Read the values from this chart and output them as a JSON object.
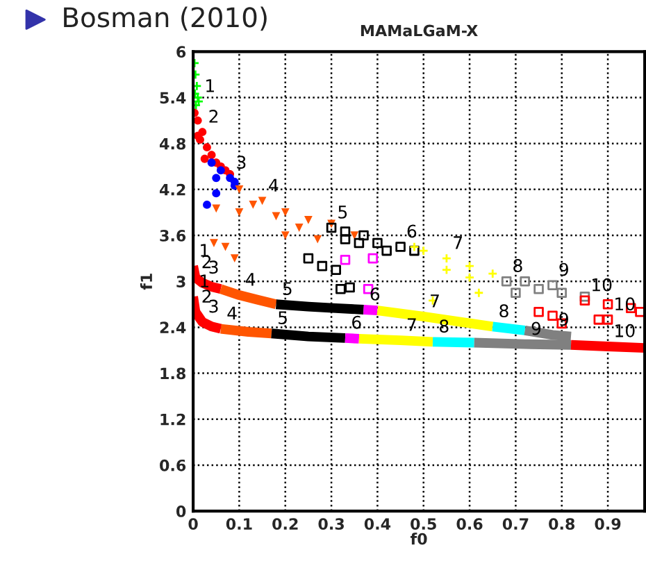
{
  "chart_data": {
    "type": "scatter",
    "title": "Bosman (2010)",
    "subtitle": "MAMaLGaM-X",
    "xlabel": "f0",
    "ylabel": "f1",
    "xlim": [
      0,
      0.98
    ],
    "ylim": [
      0,
      6
    ],
    "xticks": [
      0,
      0.1,
      0.2,
      0.3,
      0.4,
      0.5,
      0.6,
      0.7,
      0.8,
      0.9
    ],
    "yticks": [
      0,
      0.6,
      1.2,
      1.8,
      2.4,
      3,
      3.6,
      4.2,
      4.8,
      5.4,
      6
    ],
    "grid": true,
    "series": [
      {
        "marker": "cross",
        "color": "#00ff00",
        "x": [
          0.003,
          0.005,
          0.008,
          0.004,
          0.01,
          0.006,
          0.012
        ],
        "values": [
          5.85,
          5.7,
          5.55,
          5.45,
          5.4,
          5.3,
          5.35
        ]
      },
      {
        "marker": "circle",
        "color": "#ff0000",
        "x": [
          0.003,
          0.01,
          0.02,
          0.015,
          0.03,
          0.04,
          0.05,
          0.06,
          0.07,
          0.08,
          0.01,
          0.025
        ],
        "values": [
          5.2,
          5.1,
          4.95,
          4.85,
          4.75,
          4.65,
          4.55,
          4.5,
          4.45,
          4.4,
          4.9,
          4.6
        ]
      },
      {
        "marker": "circle",
        "color": "#0000ff",
        "x": [
          0.04,
          0.06,
          0.08,
          0.09,
          0.05,
          0.05,
          0.03,
          0.09
        ],
        "values": [
          4.55,
          4.45,
          4.35,
          4.3,
          4.35,
          4.15,
          4.0,
          4.25
        ]
      },
      {
        "marker": "triangle",
        "color": "#ff5500",
        "x": [
          0.1,
          0.15,
          0.2,
          0.25,
          0.3,
          0.1,
          0.05,
          0.045,
          0.07,
          0.09,
          0.2,
          0.27,
          0.35,
          0.13,
          0.18,
          0.23
        ],
        "values": [
          4.2,
          4.05,
          3.9,
          3.8,
          3.75,
          3.9,
          3.95,
          3.5,
          3.45,
          3.3,
          3.6,
          3.55,
          3.6,
          4.0,
          3.85,
          3.7
        ]
      },
      {
        "marker": "square",
        "color": "#000000",
        "x": [
          0.3,
          0.33,
          0.37,
          0.4,
          0.45,
          0.48,
          0.33,
          0.25,
          0.28,
          0.32,
          0.34,
          0.31,
          0.42,
          0.36
        ],
        "values": [
          3.7,
          3.65,
          3.6,
          3.5,
          3.45,
          3.4,
          3.55,
          3.3,
          3.2,
          2.9,
          2.92,
          3.15,
          3.4,
          3.5
        ]
      },
      {
        "marker": "square",
        "color": "#ff00ff",
        "x": [
          0.33,
          0.39,
          0.38
        ],
        "values": [
          3.28,
          3.3,
          2.9
        ]
      },
      {
        "marker": "cross",
        "color": "#ffff00",
        "x": [
          0.5,
          0.55,
          0.6,
          0.65,
          0.55,
          0.6,
          0.52,
          0.62,
          0.48
        ],
        "values": [
          3.4,
          3.3,
          3.2,
          3.1,
          3.15,
          3.05,
          2.75,
          2.85,
          3.45
        ]
      },
      {
        "marker": "square",
        "color": "#808080",
        "x": [
          0.68,
          0.72,
          0.78,
          0.8,
          0.85,
          0.7,
          0.75
        ],
        "values": [
          3.0,
          3.0,
          2.95,
          2.85,
          2.8,
          2.85,
          2.9
        ]
      },
      {
        "marker": "square",
        "color": "#ff0000",
        "x": [
          0.85,
          0.9,
          0.95,
          0.97,
          0.9,
          0.88,
          0.75,
          0.78,
          0.8
        ],
        "values": [
          2.75,
          2.7,
          2.65,
          2.6,
          2.5,
          2.5,
          2.6,
          2.55,
          2.45
        ]
      },
      {
        "type": "line",
        "color": "#ff0000",
        "x": [
          0,
          0.005,
          0.02,
          0.04,
          0.06
        ],
        "values": [
          3.2,
          3.05,
          2.98,
          2.93,
          2.9
        ]
      },
      {
        "type": "line",
        "color": "#ff5500",
        "x": [
          0.06,
          0.1,
          0.14,
          0.18
        ],
        "values": [
          2.9,
          2.82,
          2.76,
          2.7
        ]
      },
      {
        "type": "line",
        "color": "#000000",
        "x": [
          0.18,
          0.25,
          0.31,
          0.37
        ],
        "values": [
          2.7,
          2.67,
          2.65,
          2.63
        ]
      },
      {
        "type": "line",
        "color": "#ff00ff",
        "x": [
          0.37,
          0.4
        ],
        "values": [
          2.63,
          2.62
        ]
      },
      {
        "type": "line",
        "color": "#ffff00",
        "x": [
          0.4,
          0.5,
          0.58,
          0.65
        ],
        "values": [
          2.62,
          2.54,
          2.47,
          2.41
        ]
      },
      {
        "type": "line",
        "color": "#00ffff",
        "x": [
          0.65,
          0.72
        ],
        "values": [
          2.41,
          2.36
        ]
      },
      {
        "type": "line",
        "color": "#808080",
        "x": [
          0.72,
          0.78,
          0.82
        ],
        "values": [
          2.36,
          2.3,
          2.28
        ]
      },
      {
        "type": "line",
        "color": "#ff0000",
        "x": [
          0,
          0.005,
          0.02,
          0.04,
          0.06
        ],
        "values": [
          2.8,
          2.6,
          2.47,
          2.41,
          2.38
        ]
      },
      {
        "type": "line",
        "color": "#ff5500",
        "x": [
          0.06,
          0.12,
          0.17
        ],
        "values": [
          2.38,
          2.34,
          2.32
        ]
      },
      {
        "type": "line",
        "color": "#000000",
        "x": [
          0.17,
          0.25,
          0.33
        ],
        "values": [
          2.32,
          2.28,
          2.26
        ]
      },
      {
        "type": "line",
        "color": "#ff00ff",
        "x": [
          0.33,
          0.36
        ],
        "values": [
          2.26,
          2.25
        ]
      },
      {
        "type": "line",
        "color": "#ffff00",
        "x": [
          0.36,
          0.45,
          0.52
        ],
        "values": [
          2.25,
          2.23,
          2.21
        ]
      },
      {
        "type": "line",
        "color": "#00ffff",
        "x": [
          0.52,
          0.61
        ],
        "values": [
          2.21,
          2.2
        ]
      },
      {
        "type": "line",
        "color": "#808080",
        "x": [
          0.61,
          0.72,
          0.82
        ],
        "values": [
          2.2,
          2.18,
          2.17
        ]
      },
      {
        "type": "line",
        "color": "#ff0000",
        "x": [
          0.82,
          0.9,
          0.98
        ],
        "values": [
          2.17,
          2.15,
          2.13
        ]
      }
    ],
    "annotations": [
      {
        "text": "1",
        "x": 0.012,
        "y": 5.35
      },
      {
        "text": "2",
        "x": 0.02,
        "y": 4.95
      },
      {
        "text": "3",
        "x": 0.08,
        "y": 4.35
      },
      {
        "text": "4",
        "x": 0.15,
        "y": 4.05
      },
      {
        "text": "5",
        "x": 0.3,
        "y": 3.7
      },
      {
        "text": "6",
        "x": 0.45,
        "y": 3.45
      },
      {
        "text": "7",
        "x": 0.55,
        "y": 3.3
      },
      {
        "text": "8",
        "x": 0.68,
        "y": 3.0
      },
      {
        "text": "9",
        "x": 0.78,
        "y": 2.95
      },
      {
        "text": "10",
        "x": 0.85,
        "y": 2.75
      },
      {
        "text": "1",
        "x": 0,
        "y": 3.2
      },
      {
        "text": "2",
        "x": 0.005,
        "y": 3.05
      },
      {
        "text": "3",
        "x": 0.02,
        "y": 2.98
      },
      {
        "text": "4",
        "x": 0.1,
        "y": 2.82
      },
      {
        "text": "5",
        "x": 0.18,
        "y": 2.7
      },
      {
        "text": "6",
        "x": 0.37,
        "y": 2.63
      },
      {
        "text": "7",
        "x": 0.5,
        "y": 2.54
      },
      {
        "text": "8",
        "x": 0.65,
        "y": 2.41
      },
      {
        "text": "9",
        "x": 0.78,
        "y": 2.3
      },
      {
        "text": "10",
        "x": 0.9,
        "y": 2.5
      },
      {
        "text": "1",
        "x": 0,
        "y": 2.8
      },
      {
        "text": "2",
        "x": 0.005,
        "y": 2.6
      },
      {
        "text": "3",
        "x": 0.02,
        "y": 2.47
      },
      {
        "text": "4",
        "x": 0.06,
        "y": 2.38
      },
      {
        "text": "5",
        "x": 0.17,
        "y": 2.32
      },
      {
        "text": "6",
        "x": 0.33,
        "y": 2.26
      },
      {
        "text": "7",
        "x": 0.45,
        "y": 2.23
      },
      {
        "text": "8",
        "x": 0.52,
        "y": 2.21
      },
      {
        "text": "9",
        "x": 0.72,
        "y": 2.18
      },
      {
        "text": "10",
        "x": 0.9,
        "y": 2.15
      }
    ]
  }
}
